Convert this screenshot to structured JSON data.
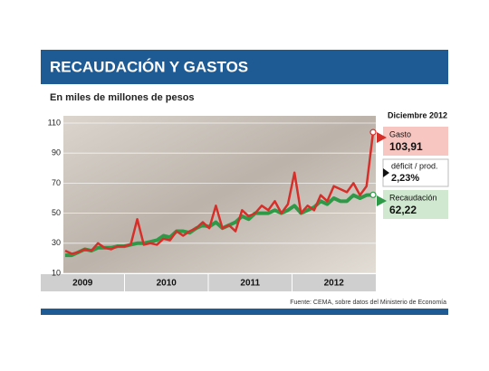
{
  "chart_data": {
    "type": "line",
    "title": "RECAUDACIÓN Y GASTOS",
    "subtitle": "En miles de millones de pesos",
    "source": "Fuente: CEMA, sobre datos del Ministerio de Economía",
    "categories": [
      null,
      null,
      null,
      null,
      null,
      null,
      null,
      null,
      null,
      null,
      null,
      null,
      null,
      null,
      null,
      null,
      null,
      null,
      null,
      null,
      null,
      null,
      null,
      null,
      null,
      null,
      null,
      null,
      null,
      null,
      null,
      null,
      null,
      null,
      null,
      null,
      null,
      null,
      null,
      null,
      null,
      null,
      null,
      null,
      null,
      null,
      null,
      null
    ],
    "x_groups": [
      "2009",
      "2010",
      "2011",
      "2012"
    ],
    "ylim": [
      10,
      110
    ],
    "yticks": [
      10,
      30,
      50,
      70,
      90,
      110
    ],
    "grid": true,
    "callout_title": "Diciembre 2012",
    "annotation": {
      "label": "déficit / prod.",
      "value_label": "2,23%"
    },
    "series": [
      {
        "name": "Gasto",
        "color": "#d62f2a",
        "values": [
          25,
          23,
          24,
          26,
          25,
          30,
          27,
          26,
          28,
          28,
          29,
          46,
          29,
          30,
          29,
          33,
          32,
          38,
          35,
          38,
          40,
          44,
          40,
          55,
          40,
          42,
          38,
          52,
          48,
          50,
          55,
          52,
          58,
          50,
          56,
          77,
          50,
          55,
          52,
          62,
          58,
          68,
          66,
          64,
          70,
          62,
          68,
          103.91
        ],
        "value_labels": [
          null,
          null,
          null,
          null,
          null,
          null,
          null,
          null,
          null,
          null,
          null,
          null,
          null,
          null,
          null,
          null,
          null,
          null,
          null,
          null,
          null,
          null,
          null,
          null,
          null,
          null,
          null,
          null,
          null,
          null,
          null,
          null,
          null,
          null,
          null,
          null,
          null,
          null,
          null,
          null,
          null,
          null,
          null,
          null,
          null,
          null,
          null,
          "103,91"
        ]
      },
      {
        "name": "Recaudación",
        "color": "#2e9a48",
        "values": [
          22,
          22,
          24,
          26,
          25,
          27,
          27,
          27,
          28,
          28,
          29,
          30,
          30,
          31,
          32,
          35,
          34,
          38,
          38,
          37,
          40,
          42,
          41,
          44,
          40,
          42,
          44,
          48,
          46,
          50,
          50,
          50,
          52,
          50,
          52,
          55,
          50,
          52,
          54,
          58,
          56,
          60,
          58,
          58,
          62,
          60,
          62,
          62.22
        ],
        "value_labels": [
          null,
          null,
          null,
          null,
          null,
          null,
          null,
          null,
          null,
          null,
          null,
          null,
          null,
          null,
          null,
          null,
          null,
          null,
          null,
          null,
          null,
          null,
          null,
          null,
          null,
          null,
          null,
          null,
          null,
          null,
          null,
          null,
          null,
          null,
          null,
          null,
          null,
          null,
          null,
          null,
          null,
          null,
          null,
          null,
          null,
          null,
          null,
          "62,22"
        ]
      }
    ]
  }
}
